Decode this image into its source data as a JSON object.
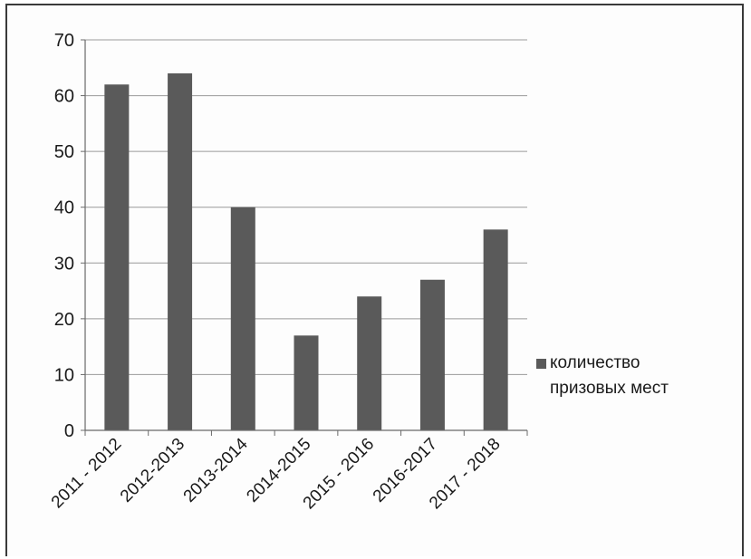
{
  "chart_data": {
    "type": "bar",
    "categories": [
      "2011 - 2012",
      "2012-2013",
      "2013-2014",
      "2014-2015",
      "2015 - 2016",
      "2016-2017",
      "2017 - 2018"
    ],
    "series": [
      {
        "name": "количество призовых мест",
        "values": [
          62,
          64,
          40,
          17,
          24,
          27,
          36
        ]
      }
    ],
    "title": "",
    "xlabel": "",
    "ylabel": "",
    "ylim": [
      0,
      70
    ],
    "yticks": [
      "0",
      "10",
      "20",
      "30",
      "40",
      "50",
      "60",
      "70"
    ],
    "grid": true,
    "legend_position": "right",
    "legend_lines": [
      "количество",
      "призовых мест"
    ],
    "colors": {
      "bar": "#5a5a5a",
      "grid": "#9a9a9a",
      "axis": "#6a6a6a",
      "frame": "#3a3a3a"
    }
  }
}
